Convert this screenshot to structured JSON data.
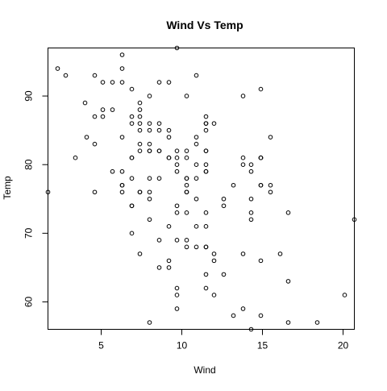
{
  "chart_data": {
    "type": "scatter",
    "title": "Wind Vs Temp",
    "xlabel": "Wind",
    "ylabel": "Temp",
    "xlim": [
      1.7,
      20.7
    ],
    "ylim": [
      56,
      97
    ],
    "xticks": [
      5,
      10,
      15,
      20
    ],
    "yticks": [
      60,
      70,
      80,
      90
    ],
    "grid": false,
    "legend": "none",
    "marker": "open-circle",
    "colors": {
      "point": "#000000",
      "axis": "#000000",
      "background": "#ffffff"
    },
    "series": [
      {
        "x": [
          7.4,
          8.0,
          12.6,
          11.5,
          14.3,
          14.9,
          8.6,
          13.8,
          20.1,
          8.6,
          6.9,
          9.7,
          9.2,
          10.9,
          13.2,
          11.5,
          12.0,
          18.4,
          11.5,
          9.7,
          9.7,
          16.6,
          9.7,
          12.0,
          16.6,
          14.9,
          8.0,
          12.0,
          14.9,
          5.7,
          7.4,
          8.6,
          9.7,
          16.1,
          9.2,
          8.6,
          14.3,
          9.7,
          6.9,
          13.8,
          11.5,
          10.9,
          9.2,
          8.0,
          13.8,
          11.5,
          14.9,
          20.7,
          9.2,
          11.5,
          10.3,
          6.3,
          1.7,
          4.6,
          6.3,
          8.0,
          8.0,
          10.3,
          11.5,
          14.9,
          8.0,
          4.1,
          9.2,
          9.2,
          10.9,
          4.6,
          10.9,
          5.1,
          6.3,
          5.7,
          7.4,
          8.6,
          14.3,
          14.9,
          14.9,
          14.3,
          6.9,
          10.3,
          6.3,
          5.1,
          11.5,
          6.9,
          9.7,
          11.5,
          8.6,
          8.0,
          8.6,
          12.0,
          7.4,
          7.4,
          7.4,
          9.2,
          6.9,
          13.8,
          7.4,
          6.9,
          7.4,
          4.6,
          4.0,
          10.3,
          8.0,
          8.6,
          11.5,
          11.5,
          11.5,
          9.7,
          11.5,
          10.3,
          6.3,
          7.4,
          10.9,
          10.3,
          15.5,
          14.3,
          12.6,
          9.7,
          3.4,
          8.0,
          5.7,
          9.7,
          2.3,
          6.3,
          6.3,
          6.9,
          5.1,
          2.8,
          4.6,
          7.4,
          15.5,
          10.9,
          10.3,
          10.9,
          9.7,
          14.9,
          15.5,
          6.3,
          10.9,
          11.5,
          6.9,
          13.8,
          10.3,
          10.3,
          8.0,
          12.6,
          9.2,
          10.3,
          10.3,
          16.6,
          6.9,
          13.2,
          14.3,
          8.0,
          11.5
        ],
        "y": [
          67,
          72,
          74,
          62,
          56,
          66,
          65,
          59,
          61,
          69,
          74,
          69,
          66,
          68,
          58,
          64,
          66,
          57,
          68,
          62,
          59,
          73,
          61,
          61,
          57,
          58,
          57,
          67,
          81,
          79,
          76,
          78,
          74,
          67,
          84,
          85,
          79,
          82,
          87,
          90,
          87,
          93,
          92,
          82,
          80,
          79,
          77,
          72,
          65,
          73,
          76,
          77,
          76,
          76,
          76,
          75,
          78,
          73,
          80,
          77,
          83,
          84,
          85,
          81,
          84,
          83,
          83,
          88,
          92,
          92,
          89,
          82,
          73,
          81,
          91,
          80,
          81,
          82,
          84,
          87,
          85,
          74,
          81,
          82,
          86,
          85,
          82,
          86,
          88,
          86,
          83,
          81,
          81,
          81,
          82,
          86,
          85,
          87,
          89,
          90,
          90,
          92,
          86,
          86,
          82,
          80,
          79,
          77,
          79,
          76,
          78,
          78,
          77,
          72,
          75,
          79,
          81,
          86,
          88,
          97,
          94,
          96,
          94,
          91,
          92,
          93,
          93,
          87,
          84,
          80,
          78,
          75,
          73,
          81,
          76,
          77,
          71,
          71,
          78,
          67,
          76,
          68,
          82,
          64,
          71,
          81,
          69,
          63,
          70,
          77,
          75,
          76,
          68
        ]
      }
    ]
  }
}
